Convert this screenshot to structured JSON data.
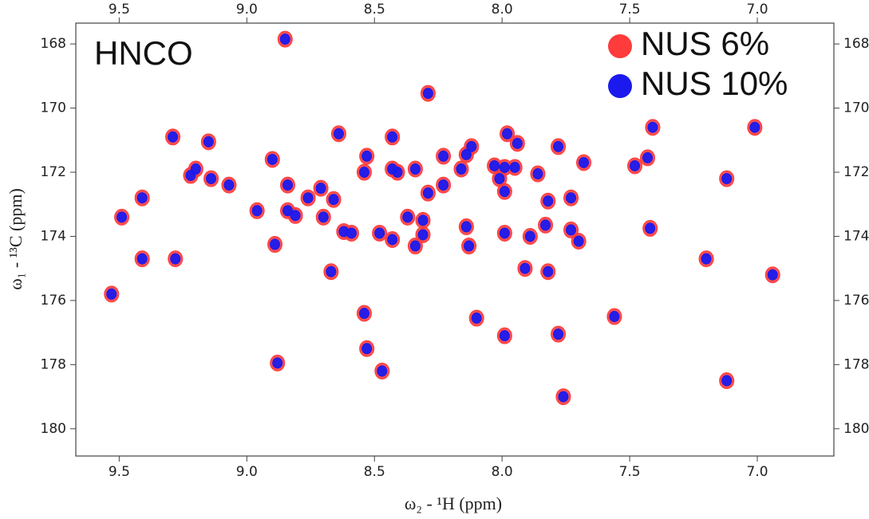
{
  "chart_data": {
    "type": "scatter",
    "annotation": "HNCO",
    "x_label": "ω₂ - ¹H  (ppm)",
    "y_label": "ω₁ - ¹³C  (ppm)",
    "xlim": [
      9.67,
      6.7
    ],
    "ylim": [
      167.35,
      180.85
    ],
    "xticks": [
      9.5,
      {
        "value": 9.0,
        "label": "9.0"
      },
      8.5,
      {
        "value": 8.0,
        "label": "8.0"
      },
      7.5,
      {
        "value": 7.0,
        "label": "7.0"
      }
    ],
    "yticks": [
      168,
      170,
      172,
      174,
      176,
      178,
      180
    ],
    "legend": "top-right",
    "series": [
      {
        "name": "NUS 6%",
        "color": "#ff3b3b",
        "x": [
          8.85,
          8.29,
          9.29,
          9.15,
          8.64,
          8.43,
          7.98,
          7.94,
          8.12,
          7.78,
          7.41,
          7.01,
          8.9,
          9.2,
          9.22,
          9.14,
          9.07,
          8.84,
          8.76,
          8.71,
          8.66,
          8.54,
          8.53,
          8.43,
          8.41,
          8.34,
          8.29,
          8.23,
          8.23,
          8.16,
          8.14,
          8.03,
          7.99,
          8.01,
          7.99,
          7.95,
          7.86,
          7.82,
          7.73,
          7.68,
          7.48,
          7.43,
          7.12,
          9.49,
          9.41,
          8.96,
          8.84,
          8.81,
          8.7,
          9.53,
          9.41,
          9.28,
          8.89,
          8.67,
          8.62,
          8.59,
          8.48,
          8.43,
          8.34,
          8.31,
          8.31,
          8.37,
          8.14,
          8.13,
          7.99,
          7.89,
          7.83,
          7.73,
          7.7,
          7.91,
          7.82,
          7.42,
          7.2,
          6.94,
          8.53,
          8.47,
          8.54,
          8.1,
          7.99,
          7.78,
          7.56,
          7.76,
          8.88,
          7.12
        ],
        "values": [
          167.85,
          169.54,
          170.9,
          171.05,
          170.8,
          170.9,
          170.8,
          171.1,
          171.2,
          171.2,
          170.6,
          170.6,
          171.6,
          171.9,
          172.1,
          172.2,
          172.4,
          172.4,
          172.8,
          172.5,
          172.85,
          172.0,
          171.5,
          171.9,
          172.0,
          171.9,
          172.65,
          172.4,
          171.5,
          171.9,
          171.45,
          171.8,
          171.85,
          172.2,
          172.6,
          171.85,
          172.05,
          172.9,
          172.8,
          171.7,
          171.8,
          171.55,
          172.2,
          173.4,
          172.8,
          173.2,
          173.2,
          173.35,
          173.4,
          175.8,
          174.7,
          174.7,
          174.25,
          175.1,
          173.85,
          173.9,
          173.9,
          174.1,
          174.3,
          173.95,
          173.5,
          173.4,
          173.7,
          174.3,
          173.9,
          174.0,
          173.65,
          173.8,
          174.15,
          175.0,
          175.1,
          173.75,
          174.7,
          175.2,
          177.5,
          178.2,
          176.4,
          176.55,
          177.1,
          177.05,
          176.5,
          179.0,
          177.95,
          178.5
        ]
      },
      {
        "name": "NUS 10%",
        "color": "#1a1aee",
        "x": [
          8.85,
          8.29,
          9.29,
          9.15,
          8.64,
          8.43,
          7.98,
          7.94,
          8.12,
          7.78,
          7.41,
          7.01,
          8.9,
          9.2,
          9.22,
          9.14,
          9.07,
          8.84,
          8.76,
          8.71,
          8.66,
          8.54,
          8.53,
          8.43,
          8.41,
          8.34,
          8.29,
          8.23,
          8.23,
          8.16,
          8.14,
          8.03,
          7.99,
          8.01,
          7.99,
          7.95,
          7.86,
          7.82,
          7.73,
          7.68,
          7.48,
          7.43,
          7.12,
          9.49,
          9.41,
          8.96,
          8.84,
          8.81,
          8.7,
          9.53,
          9.41,
          9.28,
          8.89,
          8.67,
          8.62,
          8.59,
          8.48,
          8.43,
          8.34,
          8.31,
          8.31,
          8.37,
          8.14,
          8.13,
          7.99,
          7.89,
          7.83,
          7.73,
          7.7,
          7.91,
          7.82,
          7.42,
          7.2,
          6.94,
          8.53,
          8.47,
          8.54,
          8.1,
          7.99,
          7.78,
          7.56,
          7.76,
          8.88,
          7.12
        ],
        "values": [
          167.85,
          169.54,
          170.9,
          171.05,
          170.8,
          170.9,
          170.8,
          171.1,
          171.2,
          171.2,
          170.6,
          170.6,
          171.6,
          171.9,
          172.1,
          172.2,
          172.4,
          172.4,
          172.8,
          172.5,
          172.85,
          172.0,
          171.5,
          171.9,
          172.0,
          171.9,
          172.65,
          172.4,
          171.5,
          171.9,
          171.45,
          171.8,
          171.85,
          172.2,
          172.6,
          171.85,
          172.05,
          172.9,
          172.8,
          171.7,
          171.8,
          171.55,
          172.2,
          173.4,
          172.8,
          173.2,
          173.2,
          173.35,
          173.4,
          175.8,
          174.7,
          174.7,
          174.25,
          175.1,
          173.85,
          173.9,
          173.9,
          174.1,
          174.3,
          173.95,
          173.5,
          173.4,
          173.7,
          174.3,
          173.9,
          174.0,
          173.65,
          173.8,
          174.15,
          175.0,
          175.1,
          173.75,
          174.7,
          175.2,
          177.5,
          178.2,
          176.4,
          176.55,
          177.1,
          177.05,
          176.5,
          179.0,
          177.95,
          178.5
        ]
      }
    ]
  }
}
